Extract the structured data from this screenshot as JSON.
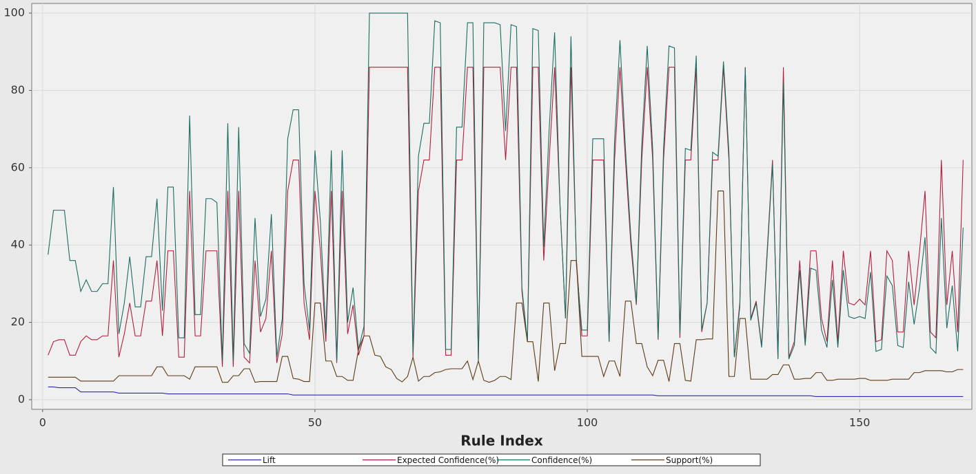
{
  "chart_data": {
    "type": "line",
    "x_label": "Rule Index",
    "x": [
      1,
      2,
      3,
      4,
      5,
      6,
      7,
      8,
      9,
      10,
      11,
      12,
      13,
      14,
      15,
      16,
      17,
      18,
      19,
      20,
      21,
      22,
      23,
      24,
      25,
      26,
      27,
      28,
      29,
      30,
      31,
      32,
      33,
      34,
      35,
      36,
      37,
      38,
      39,
      40,
      41,
      42,
      43,
      44,
      45,
      46,
      47,
      48,
      49,
      50,
      51,
      52,
      53,
      54,
      55,
      56,
      57,
      58,
      59,
      60,
      61,
      62,
      63,
      64,
      65,
      66,
      67,
      68,
      69,
      70,
      71,
      72,
      73,
      74,
      75,
      76,
      77,
      78,
      79,
      80,
      81,
      82,
      83,
      84,
      85,
      86,
      87,
      88,
      89,
      90,
      91,
      92,
      93,
      94,
      95,
      96,
      97,
      98,
      99,
      100,
      101,
      102,
      103,
      104,
      105,
      106,
      107,
      108,
      109,
      110,
      111,
      112,
      113,
      114,
      115,
      116,
      117,
      118,
      119,
      120,
      121,
      122,
      123,
      124,
      125,
      126,
      127,
      128,
      129,
      130,
      131,
      132,
      133,
      134,
      135,
      136,
      137,
      138,
      139,
      140,
      141,
      142,
      143,
      144,
      145,
      146,
      147,
      148,
      149,
      150,
      151,
      152,
      153,
      154,
      155,
      156,
      157,
      158,
      159,
      160,
      161,
      162,
      163,
      164,
      165,
      166,
      167,
      168,
      169
    ],
    "series": [
      {
        "name": "Lift",
        "color": "#2a2ab0",
        "values": [
          3.3,
          3.3,
          3.1,
          3.1,
          3.1,
          3.1,
          2.0,
          2.0,
          2.0,
          2.0,
          2.0,
          2.0,
          2.0,
          1.7,
          1.7,
          1.7,
          1.7,
          1.7,
          1.7,
          1.7,
          1.7,
          1.7,
          1.5,
          1.5,
          1.5,
          1.5,
          1.5,
          1.5,
          1.5,
          1.5,
          1.5,
          1.5,
          1.5,
          1.5,
          1.5,
          1.5,
          1.5,
          1.5,
          1.5,
          1.5,
          1.5,
          1.5,
          1.5,
          1.5,
          1.5,
          1.2,
          1.2,
          1.2,
          1.2,
          1.2,
          1.2,
          1.2,
          1.2,
          1.2,
          1.2,
          1.2,
          1.2,
          1.2,
          1.2,
          1.2,
          1.2,
          1.2,
          1.2,
          1.2,
          1.2,
          1.2,
          1.2,
          1.2,
          1.2,
          1.2,
          1.2,
          1.2,
          1.2,
          1.2,
          1.2,
          1.2,
          1.2,
          1.2,
          1.2,
          1.2,
          1.2,
          1.2,
          1.2,
          1.2,
          1.2,
          1.2,
          1.2,
          1.2,
          1.2,
          1.2,
          1.2,
          1.2,
          1.2,
          1.2,
          1.2,
          1.2,
          1.2,
          1.2,
          1.2,
          1.2,
          1.2,
          1.2,
          1.2,
          1.2,
          1.2,
          1.2,
          1.2,
          1.2,
          1.2,
          1.2,
          1.2,
          1.2,
          1.0,
          1.0,
          1.0,
          1.0,
          1.0,
          1.0,
          1.0,
          1.0,
          1.0,
          1.0,
          1.0,
          1.0,
          1.0,
          1.0,
          1.0,
          1.0,
          1.0,
          1.0,
          1.0,
          1.0,
          1.0,
          1.0,
          1.0,
          1.0,
          1.0,
          1.0,
          1.0,
          1.0,
          1.0,
          0.8,
          0.8,
          0.8,
          0.8,
          0.8,
          0.8,
          0.8,
          0.8,
          0.8,
          0.8,
          0.8,
          0.8,
          0.8,
          0.8,
          0.8,
          0.8,
          0.8,
          0.8,
          0.8,
          0.8,
          0.8,
          0.8,
          0.8,
          0.8,
          0.8,
          0.8,
          0.8,
          0.8
        ]
      },
      {
        "name": "Expected Confidence(%)",
        "color": "#b21e3a",
        "values": [
          11.5,
          15,
          15.5,
          15.5,
          11.5,
          11.5,
          15,
          16.5,
          15.5,
          15.5,
          16.5,
          16.5,
          36,
          11,
          17,
          25,
          16.5,
          16.5,
          25.5,
          25.5,
          36,
          16.5,
          38.5,
          38.5,
          11,
          11,
          54,
          16.5,
          16.5,
          38.5,
          38.5,
          38.5,
          8.5,
          54,
          8.5,
          54,
          11,
          9.5,
          36,
          17.5,
          21,
          38.5,
          9.5,
          17,
          54,
          62,
          62,
          25,
          15.5,
          54,
          38.5,
          15,
          54,
          9.5,
          54,
          17,
          24.5,
          11.5,
          16.5,
          86,
          86,
          86,
          86,
          86,
          86,
          86,
          86,
          11,
          54,
          62,
          62,
          86,
          86,
          11.5,
          11.5,
          62,
          62,
          86,
          86,
          10,
          86,
          86,
          86,
          86,
          62,
          86,
          86,
          28,
          15,
          86,
          86,
          36,
          62,
          86,
          50,
          21,
          86,
          36,
          16.5,
          16.5,
          62,
          62,
          62,
          15,
          62,
          86,
          62,
          40,
          24.5,
          62,
          86,
          62,
          15.5,
          62,
          86,
          86,
          16,
          62,
          62,
          86,
          17.5,
          25,
          62,
          62,
          86,
          62,
          11,
          25,
          86,
          21,
          25.5,
          14,
          38,
          62,
          11,
          86,
          11,
          15,
          36,
          15,
          38.5,
          38.5,
          21,
          15,
          36,
          15,
          38.5,
          25,
          24.5,
          26,
          24.5,
          38.5,
          15,
          15.5,
          38.5,
          36,
          17.5,
          17.5,
          38.5,
          24.5,
          38.5,
          54,
          17.5,
          16,
          62,
          24.5,
          38.5,
          17.5,
          62
        ]
      },
      {
        "name": "Confidence(%)",
        "color": "#1a6b60",
        "values": [
          37.5,
          49,
          49,
          49,
          36,
          36,
          28,
          31,
          28,
          28,
          30,
          30,
          55,
          17,
          25,
          37,
          24,
          24,
          37,
          37,
          52,
          23,
          55,
          55,
          16,
          16,
          73.5,
          22,
          22,
          52,
          52,
          51,
          10,
          71.5,
          10,
          70.5,
          14.5,
          12,
          47,
          21.5,
          26,
          48,
          11,
          21,
          67.5,
          75,
          75,
          30,
          18,
          64.5,
          46,
          17,
          64.5,
          10,
          64.5,
          20,
          29,
          13,
          19,
          100,
          100,
          100,
          100,
          100,
          100,
          100,
          100,
          12,
          63,
          71.5,
          71.5,
          98,
          97.5,
          13,
          13,
          70.5,
          70.5,
          97.5,
          97.5,
          10,
          97.5,
          97.5,
          97.5,
          97,
          69.5,
          97,
          96.5,
          29,
          15,
          96,
          95.5,
          39.5,
          70,
          95,
          50,
          21,
          94,
          35,
          18,
          18,
          67.5,
          67.5,
          67.5,
          15,
          67,
          93,
          65,
          42,
          25,
          66,
          91.5,
          65,
          16,
          65,
          91.5,
          91,
          17,
          65,
          64.5,
          89,
          18,
          25,
          64,
          63,
          87.5,
          64,
          11,
          24,
          86,
          20.5,
          25,
          13.5,
          37,
          61,
          10.5,
          82,
          10.5,
          14,
          33.5,
          14,
          34,
          33.5,
          18,
          13.5,
          31,
          13.5,
          33.5,
          21.5,
          21,
          21.5,
          21,
          33,
          12.5,
          13,
          32,
          29.5,
          14,
          13.5,
          30.5,
          19.5,
          29,
          42,
          13.5,
          12,
          47,
          18.5,
          29.5,
          12.5,
          44.5
        ]
      },
      {
        "name": "Support(%)",
        "color": "#5a3a14",
        "values": [
          5.8,
          5.8,
          5.8,
          5.8,
          5.8,
          5.8,
          4.8,
          4.8,
          4.8,
          4.8,
          4.8,
          4.8,
          4.8,
          6.2,
          6.2,
          6.2,
          6.2,
          6.2,
          6.2,
          6.2,
          8.5,
          8.5,
          6.2,
          6.2,
          6.2,
          6.2,
          5.3,
          8.5,
          8.5,
          8.5,
          8.5,
          8.5,
          4.5,
          4.5,
          6.2,
          6.2,
          8,
          8,
          4.5,
          4.7,
          4.7,
          4.7,
          4.7,
          11.2,
          11.2,
          5.5,
          5.3,
          4.7,
          4.7,
          25,
          25,
          10,
          10,
          6,
          6,
          5,
          5,
          13,
          16.5,
          16.5,
          11.5,
          11.2,
          8.5,
          7.8,
          5.5,
          4.6,
          6,
          11,
          4.8,
          6,
          6,
          7,
          7.2,
          7.8,
          8,
          8,
          8,
          10,
          5.2,
          10,
          5,
          4.5,
          5,
          6,
          6,
          5.2,
          25,
          25,
          15,
          15,
          4.7,
          25,
          25,
          7.5,
          14.5,
          14.5,
          36,
          36,
          11.2,
          11.2,
          11.2,
          11.2,
          6,
          10,
          10,
          6,
          25.5,
          25.5,
          14.5,
          14.5,
          8.5,
          6.2,
          10.2,
          10.2,
          4.7,
          14.5,
          14.5,
          5,
          4.8,
          15.5,
          15.5,
          15.7,
          15.7,
          54,
          54,
          6,
          6,
          21,
          21,
          5.3,
          5.3,
          5.3,
          5.3,
          6.5,
          6.5,
          9,
          9,
          5.3,
          5.3,
          5.5,
          5.5,
          7,
          7,
          5,
          5,
          5.3,
          5.3,
          5.3,
          5.3,
          5.5,
          5.5,
          5,
          5,
          5,
          5,
          5.3,
          5.3,
          5.3,
          5.3,
          7,
          7,
          7.5,
          7.5,
          7.5,
          7.5,
          7.2,
          7.2,
          7.8,
          7.8
        ]
      }
    ],
    "xlim": [
      -2,
      170.6
    ],
    "xticks": [
      0,
      50,
      100,
      150
    ],
    "ylim": [
      -2.5,
      102.5
    ],
    "yticks": [
      0,
      20,
      40,
      60,
      80,
      100
    ],
    "grid": true,
    "legend": "bottom"
  }
}
